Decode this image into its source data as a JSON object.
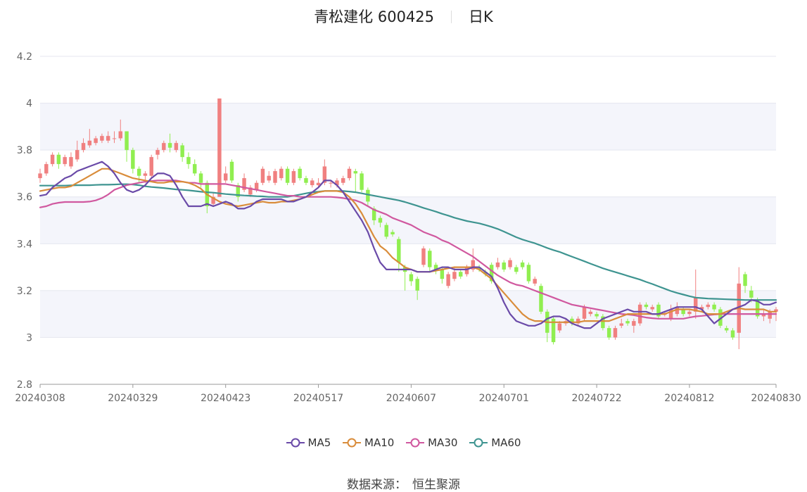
{
  "header": {
    "name_code": "青松建化 600425",
    "period": "日K"
  },
  "source": {
    "label": "数据来源：",
    "value": "恒生聚源"
  },
  "colors": {
    "up": "#f08080",
    "down": "#90ee50",
    "ma5": "#6a4aa8",
    "ma10": "#d98c3a",
    "ma30": "#d0589f",
    "ma60": "#3e9490",
    "grid_band": "#f4f5fb"
  },
  "chart_data": {
    "type": "candlestick",
    "ylim": [
      2.8,
      4.2
    ],
    "yticks": [
      2.8,
      3,
      3.2,
      3.4,
      3.6,
      3.8,
      4,
      4.2
    ],
    "ytick_labels": [
      "2.8",
      "3",
      "3.2",
      "3.4",
      "3.6",
      "3.8",
      "4",
      "4.2"
    ],
    "xtick_labels": [
      "20240308",
      "20240329",
      "20240423",
      "20240517",
      "20240607",
      "20240701",
      "20240722",
      "20240812",
      "20240830"
    ],
    "xtick_index": [
      0,
      15,
      30,
      45,
      60,
      75,
      90,
      105,
      119
    ],
    "legend": [
      "MA5",
      "MA10",
      "MA30",
      "MA60"
    ],
    "candles": [
      [
        3.68,
        3.7,
        3.72,
        3.66
      ],
      [
        3.7,
        3.74,
        3.75,
        3.69
      ],
      [
        3.74,
        3.78,
        3.79,
        3.73
      ],
      [
        3.78,
        3.74,
        3.79,
        3.72
      ],
      [
        3.74,
        3.77,
        3.78,
        3.73
      ],
      [
        3.73,
        3.77,
        3.79,
        3.72
      ],
      [
        3.76,
        3.8,
        3.84,
        3.75
      ],
      [
        3.8,
        3.83,
        3.85,
        3.79
      ],
      [
        3.82,
        3.84,
        3.89,
        3.81
      ],
      [
        3.83,
        3.85,
        3.86,
        3.82
      ],
      [
        3.84,
        3.86,
        3.87,
        3.83
      ],
      [
        3.84,
        3.86,
        3.88,
        3.83
      ],
      [
        3.85,
        3.85,
        3.88,
        3.83
      ],
      [
        3.85,
        3.88,
        3.93,
        3.84
      ],
      [
        3.88,
        3.8,
        3.88,
        3.75
      ],
      [
        3.8,
        3.72,
        3.81,
        3.7
      ],
      [
        3.72,
        3.69,
        3.73,
        3.66
      ],
      [
        3.69,
        3.7,
        3.71,
        3.66
      ],
      [
        3.69,
        3.77,
        3.78,
        3.68
      ],
      [
        3.78,
        3.8,
        3.81,
        3.76
      ],
      [
        3.8,
        3.83,
        3.84,
        3.79
      ],
      [
        3.83,
        3.81,
        3.87,
        3.79
      ],
      [
        3.8,
        3.83,
        3.84,
        3.79
      ],
      [
        3.82,
        3.77,
        3.83,
        3.75
      ],
      [
        3.77,
        3.74,
        3.79,
        3.72
      ],
      [
        3.74,
        3.7,
        3.76,
        3.69
      ],
      [
        3.7,
        3.66,
        3.71,
        3.64
      ],
      [
        3.66,
        3.56,
        3.67,
        3.53
      ],
      [
        3.57,
        3.6,
        3.62,
        3.56
      ],
      [
        3.6,
        4.02,
        4.02,
        3.75
      ],
      [
        3.67,
        3.7,
        3.73,
        3.66
      ],
      [
        3.75,
        3.67,
        3.76,
        3.66
      ],
      [
        3.65,
        3.6,
        3.66,
        3.58
      ],
      [
        3.63,
        3.68,
        3.7,
        3.62
      ],
      [
        3.61,
        3.64,
        3.65,
        3.6
      ],
      [
        3.63,
        3.66,
        3.67,
        3.62
      ],
      [
        3.66,
        3.72,
        3.73,
        3.65
      ],
      [
        3.67,
        3.69,
        3.71,
        3.66
      ],
      [
        3.66,
        3.71,
        3.72,
        3.65
      ],
      [
        3.68,
        3.72,
        3.73,
        3.67
      ],
      [
        3.72,
        3.66,
        3.73,
        3.65
      ],
      [
        3.66,
        3.71,
        3.72,
        3.65
      ],
      [
        3.72,
        3.68,
        3.73,
        3.67
      ],
      [
        3.68,
        3.66,
        3.69,
        3.65
      ],
      [
        3.65,
        3.67,
        3.68,
        3.64
      ],
      [
        3.65,
        3.66,
        3.68,
        3.64
      ],
      [
        3.66,
        3.73,
        3.76,
        3.65
      ],
      [
        3.66,
        3.66,
        3.67,
        3.64
      ],
      [
        3.65,
        3.67,
        3.68,
        3.64
      ],
      [
        3.66,
        3.68,
        3.69,
        3.65
      ],
      [
        3.68,
        3.72,
        3.73,
        3.67
      ],
      [
        3.71,
        3.7,
        3.72,
        3.62
      ],
      [
        3.7,
        3.63,
        3.71,
        3.62
      ],
      [
        3.63,
        3.58,
        3.64,
        3.56
      ],
      [
        3.55,
        3.5,
        3.56,
        3.48
      ],
      [
        3.51,
        3.49,
        3.52,
        3.47
      ],
      [
        3.48,
        3.43,
        3.49,
        3.42
      ],
      [
        3.45,
        3.44,
        3.46,
        3.43
      ],
      [
        3.42,
        3.32,
        3.43,
        3.28
      ],
      [
        3.3,
        3.28,
        3.31,
        3.2
      ],
      [
        3.27,
        3.24,
        3.28,
        3.22
      ],
      [
        3.25,
        3.2,
        3.26,
        3.16
      ],
      [
        3.31,
        3.38,
        3.39,
        3.3
      ],
      [
        3.37,
        3.3,
        3.38,
        3.28
      ],
      [
        3.31,
        3.29,
        3.32,
        3.27
      ],
      [
        3.29,
        3.25,
        3.3,
        3.23
      ],
      [
        3.22,
        3.27,
        3.28,
        3.21
      ],
      [
        3.25,
        3.28,
        3.3,
        3.24
      ],
      [
        3.28,
        3.26,
        3.29,
        3.25
      ],
      [
        3.27,
        3.3,
        3.31,
        3.26
      ],
      [
        3.29,
        3.33,
        3.38,
        3.28
      ],
      [
        3.3,
        3.29,
        3.31,
        3.28
      ],
      [
        3.28,
        3.27,
        3.29,
        3.26
      ],
      [
        3.31,
        3.24,
        3.32,
        3.23
      ],
      [
        3.3,
        3.32,
        3.34,
        3.29
      ],
      [
        3.32,
        3.29,
        3.33,
        3.28
      ],
      [
        3.3,
        3.33,
        3.34,
        3.29
      ],
      [
        3.3,
        3.28,
        3.31,
        3.27
      ],
      [
        3.32,
        3.3,
        3.33,
        3.29
      ],
      [
        3.31,
        3.24,
        3.32,
        3.23
      ],
      [
        3.23,
        3.25,
        3.26,
        3.22
      ],
      [
        3.22,
        3.11,
        3.23,
        3.1
      ],
      [
        3.11,
        3.02,
        3.12,
        2.98
      ],
      [
        3.08,
        2.98,
        3.09,
        2.97
      ],
      [
        3.03,
        3.06,
        3.07,
        3.02
      ],
      [
        3.06,
        3.07,
        3.08,
        3.05
      ],
      [
        3.08,
        3.06,
        3.09,
        3.05
      ],
      [
        3.06,
        3.08,
        3.09,
        3.05
      ],
      [
        3.08,
        3.13,
        3.14,
        3.07
      ],
      [
        3.1,
        3.11,
        3.12,
        3.09
      ],
      [
        3.1,
        3.09,
        3.11,
        3.08
      ],
      [
        3.09,
        3.04,
        3.1,
        3.03
      ],
      [
        3.04,
        3.0,
        3.05,
        2.99
      ],
      [
        3.0,
        3.04,
        3.05,
        2.99
      ],
      [
        3.05,
        3.06,
        3.08,
        3.04
      ],
      [
        3.07,
        3.06,
        3.08,
        3.05
      ],
      [
        3.05,
        3.07,
        3.08,
        3.02
      ],
      [
        3.06,
        3.14,
        3.15,
        3.05
      ],
      [
        3.14,
        3.13,
        3.15,
        3.12
      ],
      [
        3.12,
        3.13,
        3.14,
        3.11
      ],
      [
        3.14,
        3.09,
        3.15,
        3.08
      ],
      [
        3.1,
        3.1,
        3.11,
        3.09
      ],
      [
        3.08,
        3.12,
        3.14,
        3.07
      ],
      [
        3.1,
        3.13,
        3.15,
        3.09
      ],
      [
        3.12,
        3.1,
        3.13,
        3.09
      ],
      [
        3.1,
        3.11,
        3.12,
        3.09
      ],
      [
        3.11,
        3.17,
        3.29,
        3.08
      ],
      [
        3.12,
        3.13,
        3.14,
        3.11
      ],
      [
        3.13,
        3.14,
        3.15,
        3.12
      ],
      [
        3.14,
        3.12,
        3.15,
        3.11
      ],
      [
        3.12,
        3.05,
        3.13,
        3.04
      ],
      [
        3.04,
        3.03,
        3.05,
        3.02
      ],
      [
        3.03,
        3.0,
        3.04,
        2.99
      ],
      [
        3.02,
        3.23,
        3.3,
        2.95
      ],
      [
        3.27,
        3.22,
        3.28,
        3.19
      ],
      [
        3.2,
        3.17,
        3.22,
        3.15
      ],
      [
        3.16,
        3.09,
        3.17,
        3.08
      ],
      [
        3.09,
        3.1,
        3.12,
        3.07
      ],
      [
        3.08,
        3.11,
        3.12,
        3.06
      ],
      [
        3.11,
        3.12,
        3.13,
        3.07
      ]
    ],
    "ma5": [
      3.605,
      3.61,
      3.64,
      3.66,
      3.68,
      3.69,
      3.71,
      3.72,
      3.73,
      3.74,
      3.75,
      3.73,
      3.7,
      3.66,
      3.63,
      3.62,
      3.63,
      3.65,
      3.68,
      3.7,
      3.7,
      3.69,
      3.65,
      3.6,
      3.56,
      3.56,
      3.56,
      3.57,
      3.56,
      3.57,
      3.58,
      3.57,
      3.55,
      3.55,
      3.56,
      3.58,
      3.59,
      3.59,
      3.59,
      3.59,
      3.58,
      3.58,
      3.59,
      3.6,
      3.62,
      3.64,
      3.67,
      3.67,
      3.65,
      3.62,
      3.58,
      3.54,
      3.5,
      3.45,
      3.38,
      3.32,
      3.29,
      3.29,
      3.29,
      3.29,
      3.29,
      3.28,
      3.28,
      3.28,
      3.29,
      3.3,
      3.3,
      3.29,
      3.29,
      3.29,
      3.3,
      3.3,
      3.28,
      3.26,
      3.21,
      3.15,
      3.1,
      3.07,
      3.06,
      3.05,
      3.05,
      3.06,
      3.08,
      3.09,
      3.09,
      3.08,
      3.06,
      3.05,
      3.04,
      3.04,
      3.06,
      3.08,
      3.09,
      3.1,
      3.11,
      3.12,
      3.11,
      3.11,
      3.11,
      3.1,
      3.1,
      3.11,
      3.12,
      3.13,
      3.13,
      3.13,
      3.13,
      3.12,
      3.09,
      3.06,
      3.08,
      3.1,
      3.12,
      3.13,
      3.14,
      3.16,
      3.155,
      3.14,
      3.14,
      3.15
    ],
    "ma10": [
      3.625,
      3.63,
      3.635,
      3.64,
      3.64,
      3.645,
      3.66,
      3.675,
      3.69,
      3.705,
      3.72,
      3.72,
      3.71,
      3.7,
      3.69,
      3.68,
      3.675,
      3.67,
      3.665,
      3.66,
      3.66,
      3.665,
      3.665,
      3.665,
      3.66,
      3.65,
      3.635,
      3.61,
      3.595,
      3.58,
      3.57,
      3.565,
      3.56,
      3.565,
      3.57,
      3.575,
      3.58,
      3.575,
      3.575,
      3.58,
      3.58,
      3.585,
      3.59,
      3.6,
      3.61,
      3.62,
      3.625,
      3.625,
      3.625,
      3.62,
      3.6,
      3.57,
      3.53,
      3.48,
      3.43,
      3.39,
      3.37,
      3.34,
      3.32,
      3.3,
      3.29,
      3.28,
      3.28,
      3.28,
      3.285,
      3.29,
      3.295,
      3.3,
      3.3,
      3.3,
      3.3,
      3.29,
      3.27,
      3.25,
      3.22,
      3.19,
      3.16,
      3.13,
      3.1,
      3.08,
      3.07,
      3.07,
      3.065,
      3.065,
      3.065,
      3.065,
      3.065,
      3.065,
      3.07,
      3.07,
      3.07,
      3.07,
      3.07,
      3.08,
      3.09,
      3.1,
      3.1,
      3.1,
      3.1,
      3.1,
      3.1,
      3.1,
      3.11,
      3.12,
      3.12,
      3.12,
      3.115,
      3.11,
      3.1,
      3.1,
      3.1,
      3.11,
      3.12,
      3.125,
      3.12,
      3.12,
      3.12,
      3.12,
      3.11,
      3.11
    ],
    "ma30": [
      3.555,
      3.56,
      3.57,
      3.575,
      3.578,
      3.578,
      3.578,
      3.578,
      3.58,
      3.585,
      3.595,
      3.61,
      3.63,
      3.64,
      3.65,
      3.655,
      3.66,
      3.665,
      3.668,
      3.67,
      3.67,
      3.67,
      3.67,
      3.665,
      3.66,
      3.66,
      3.655,
      3.655,
      3.655,
      3.655,
      3.655,
      3.65,
      3.645,
      3.64,
      3.635,
      3.63,
      3.625,
      3.62,
      3.615,
      3.61,
      3.605,
      3.605,
      3.6,
      3.6,
      3.6,
      3.6,
      3.6,
      3.6,
      3.598,
      3.595,
      3.59,
      3.585,
      3.575,
      3.56,
      3.545,
      3.535,
      3.525,
      3.51,
      3.5,
      3.49,
      3.48,
      3.465,
      3.45,
      3.44,
      3.43,
      3.415,
      3.405,
      3.39,
      3.375,
      3.36,
      3.345,
      3.325,
      3.305,
      3.285,
      3.265,
      3.25,
      3.235,
      3.225,
      3.22,
      3.21,
      3.2,
      3.19,
      3.18,
      3.17,
      3.16,
      3.15,
      3.14,
      3.135,
      3.13,
      3.125,
      3.12,
      3.115,
      3.11,
      3.105,
      3.1,
      3.098,
      3.095,
      3.09,
      3.085,
      3.082,
      3.08,
      3.08,
      3.08,
      3.08,
      3.08,
      3.085,
      3.09,
      3.092,
      3.095,
      3.098,
      3.1,
      3.1,
      3.1,
      3.1,
      3.1,
      3.1,
      3.1,
      3.1,
      3.1,
      3.1
    ],
    "ma60": [
      3.648,
      3.648,
      3.648,
      3.648,
      3.648,
      3.649,
      3.65,
      3.65,
      3.65,
      3.651,
      3.652,
      3.652,
      3.653,
      3.654,
      3.654,
      3.653,
      3.65,
      3.645,
      3.642,
      3.64,
      3.638,
      3.635,
      3.632,
      3.63,
      3.628,
      3.625,
      3.622,
      3.62,
      3.618,
      3.615,
      3.612,
      3.61,
      3.608,
      3.606,
      3.605,
      3.603,
      3.602,
      3.6,
      3.6,
      3.6,
      3.6,
      3.605,
      3.61,
      3.615,
      3.62,
      3.622,
      3.625,
      3.625,
      3.625,
      3.625,
      3.623,
      3.62,
      3.615,
      3.61,
      3.605,
      3.6,
      3.595,
      3.59,
      3.585,
      3.578,
      3.57,
      3.562,
      3.553,
      3.545,
      3.537,
      3.528,
      3.52,
      3.511,
      3.504,
      3.497,
      3.492,
      3.487,
      3.48,
      3.472,
      3.463,
      3.452,
      3.44,
      3.428,
      3.418,
      3.41,
      3.402,
      3.392,
      3.382,
      3.373,
      3.365,
      3.355,
      3.345,
      3.335,
      3.325,
      3.315,
      3.305,
      3.295,
      3.287,
      3.279,
      3.271,
      3.263,
      3.255,
      3.247,
      3.237,
      3.228,
      3.218,
      3.208,
      3.198,
      3.19,
      3.183,
      3.176,
      3.17,
      3.168,
      3.166,
      3.165,
      3.164,
      3.163,
      3.162,
      3.161,
      3.16,
      3.16,
      3.16,
      3.16,
      3.16,
      3.16
    ]
  }
}
